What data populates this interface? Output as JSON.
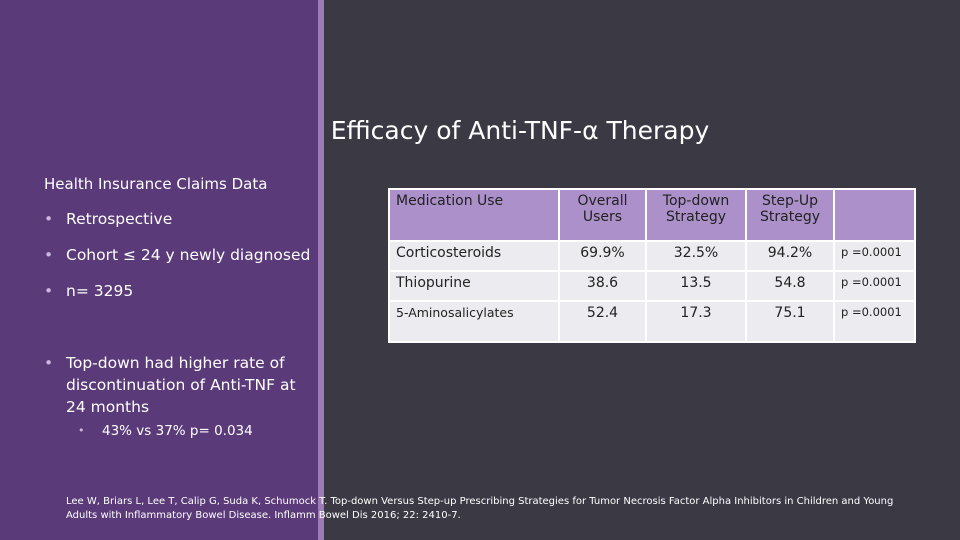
{
  "title": "Efficacy of Anti-TNF-α Therapy",
  "subtitle": "Health Insurance Claims Data",
  "bullets": [
    "Retrospective",
    "Cohort ≤ 24 y newly diagnosed",
    "n= 3295",
    "Top-down had higher rate of discontinuation of Anti-TNF at 24 months"
  ],
  "sub_bullet": "43% vs 37%  p= 0.034",
  "table": {
    "header": [
      "Medication Use",
      "Overall Users",
      "Top-down Strategy",
      "Step-Up Strategy"
    ],
    "rows": [
      [
        "Corticosteroids",
        "69.9%",
        "32.5%",
        "94.2%",
        "p =0.0001"
      ],
      [
        "Thiopurine",
        "38.6",
        "13.5",
        "54.8",
        "p =0.0001"
      ],
      [
        "5-Aminosalicylates",
        "52.4",
        "17.3",
        "75.1",
        "p =0.0001"
      ]
    ]
  },
  "citation": "Lee W, Briars L, Lee T, Calip G, Suda K, Schumock T.  Top-down Versus Step-up Prescribing Strategies for Tumor Necrosis Factor Alpha Inhibitors in Children and Young Adults with Inflammatory Bowel Disease. Inflamm Bowel Dis 2016; 22: 2410-7."
}
